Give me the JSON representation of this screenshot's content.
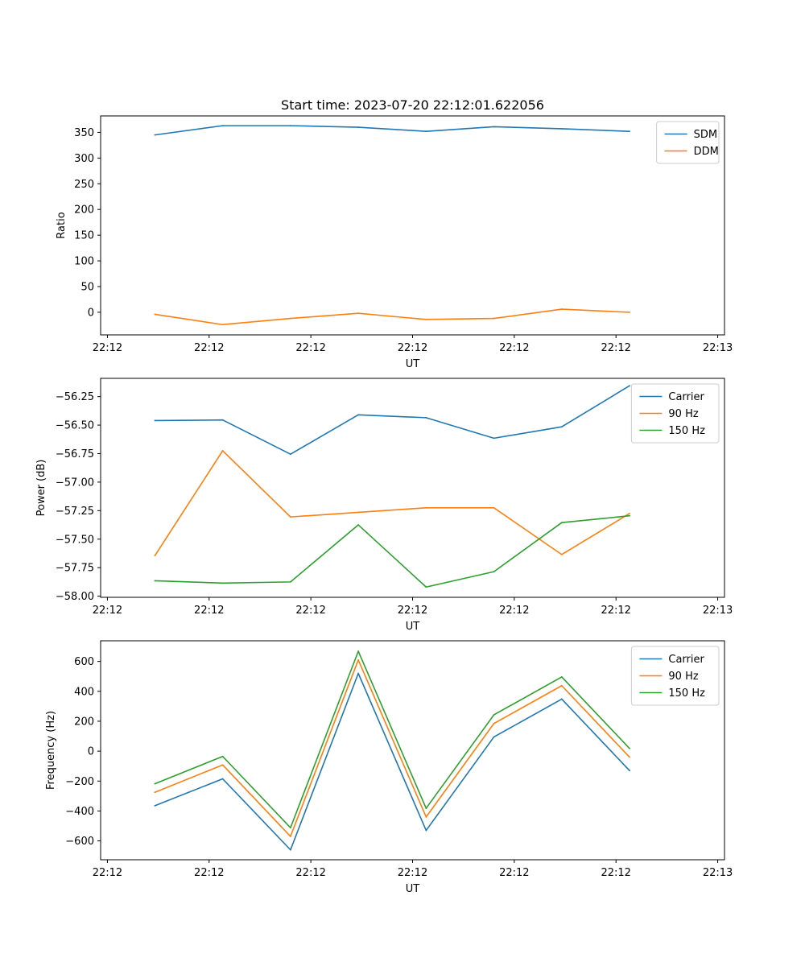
{
  "figure_title": "Start time: 2023-07-20 22:12:01.622056",
  "colors": {
    "blue": "#1f77b4",
    "orange": "#ff7f0e",
    "green": "#2ca02c"
  },
  "chart_data": [
    {
      "type": "line",
      "title": "Start time: 2023-07-20 22:12:01.622056",
      "xlabel": "UT",
      "ylabel": "Ratio",
      "x": [
        1,
        2,
        3,
        4,
        5,
        6,
        7,
        8
      ],
      "xlim": [
        0.2,
        9.4
      ],
      "xticks": [
        0.3,
        1.8,
        3.3,
        4.8,
        6.3,
        7.8,
        9.3
      ],
      "xtick_labels": [
        "22:12",
        "22:12",
        "22:12",
        "22:12",
        "22:12",
        "22:12",
        "22:13"
      ],
      "ylim": [
        -44,
        382
      ],
      "yticks": [
        0,
        50,
        100,
        150,
        200,
        250,
        300,
        350
      ],
      "ytick_labels": [
        "0",
        "50",
        "100",
        "150",
        "200",
        "250",
        "300",
        "350"
      ],
      "legend_position": "top-right",
      "series": [
        {
          "name": "SDM",
          "color": "#1f77b4",
          "values": [
            345,
            363,
            363,
            360,
            352,
            361,
            357,
            352
          ]
        },
        {
          "name": "DDM",
          "color": "#ff7f0e",
          "values": [
            -4,
            -24,
            -12,
            -2,
            -14,
            -12,
            6,
            0
          ]
        }
      ]
    },
    {
      "type": "line",
      "title": "",
      "xlabel": "UT",
      "ylabel": "Power (dB)",
      "x": [
        1,
        2,
        3,
        4,
        5,
        6,
        7,
        8
      ],
      "xlim": [
        0.2,
        9.4
      ],
      "xticks": [
        0.3,
        1.8,
        3.3,
        4.8,
        6.3,
        7.8,
        9.3
      ],
      "xtick_labels": [
        "22:12",
        "22:12",
        "22:12",
        "22:12",
        "22:12",
        "22:12",
        "22:13"
      ],
      "ylim": [
        -58.01,
        -56.09
      ],
      "yticks": [
        -58.0,
        -57.75,
        -57.5,
        -57.25,
        -57.0,
        -56.75,
        -56.5,
        -56.25
      ],
      "ytick_labels": [
        "−58.00",
        "−57.75",
        "−57.50",
        "−57.25",
        "−57.00",
        "−56.75",
        "−56.50",
        "−56.25"
      ],
      "legend_position": "top-right",
      "series": [
        {
          "name": "Carrier",
          "color": "#1f77b4",
          "values": [
            -56.46,
            -56.455,
            -56.755,
            -56.41,
            -56.435,
            -56.615,
            -56.515,
            -56.155
          ]
        },
        {
          "name": "90 Hz",
          "color": "#ff7f0e",
          "values": [
            -57.645,
            -56.725,
            -57.305,
            -57.265,
            -57.225,
            -57.225,
            -57.635,
            -57.275
          ]
        },
        {
          "name": "150 Hz",
          "color": "#2ca02c",
          "values": [
            -57.865,
            -57.885,
            -57.875,
            -57.375,
            -57.92,
            -57.785,
            -57.355,
            -57.295
          ]
        }
      ]
    },
    {
      "type": "line",
      "title": "",
      "xlabel": "UT",
      "ylabel": "Frequency (Hz)",
      "x": [
        1,
        2,
        3,
        4,
        5,
        6,
        7,
        8
      ],
      "xlim": [
        0.2,
        9.4
      ],
      "xticks": [
        0.3,
        1.8,
        3.3,
        4.8,
        6.3,
        7.8,
        9.3
      ],
      "xtick_labels": [
        "22:12",
        "22:12",
        "22:12",
        "22:12",
        "22:12",
        "22:12",
        "22:13"
      ],
      "ylim": [
        -726,
        738
      ],
      "yticks": [
        -600,
        -400,
        -200,
        0,
        200,
        400,
        600
      ],
      "ytick_labels": [
        "−600",
        "−400",
        "−200",
        "0",
        "200",
        "400",
        "600"
      ],
      "legend_position": "top-right",
      "series": [
        {
          "name": "Carrier",
          "color": "#1f77b4",
          "values": [
            -365,
            -185,
            -660,
            520,
            -530,
            95,
            348,
            -130
          ]
        },
        {
          "name": "90 Hz",
          "color": "#ff7f0e",
          "values": [
            -275,
            -92,
            -570,
            610,
            -440,
            185,
            438,
            -40
          ]
        },
        {
          "name": "150 Hz",
          "color": "#2ca02c",
          "values": [
            -218,
            -35,
            -512,
            668,
            -382,
            243,
            496,
            18
          ]
        }
      ]
    }
  ]
}
